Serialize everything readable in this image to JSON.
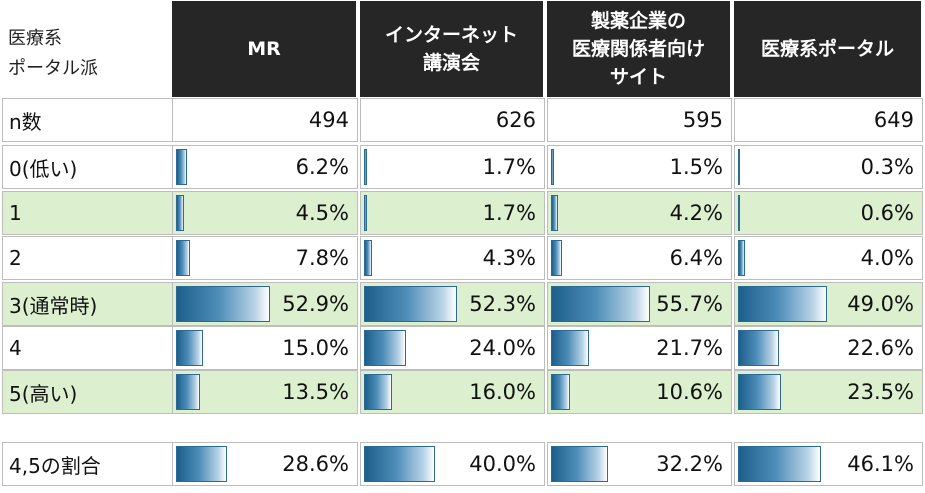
{
  "chart_data": {
    "type": "table",
    "corner_label": "医療系\nポータル派",
    "columns": [
      "MR",
      "インターネット\n講演会",
      "製薬企業の\n医療関係者向け\nサイト",
      "医療系ポータル"
    ],
    "n_row": {
      "label": "n数",
      "values": [
        494,
        626,
        595,
        649
      ]
    },
    "rows": [
      {
        "label": "0(低い)",
        "values": [
          6.2,
          1.7,
          1.5,
          0.3
        ],
        "highlight": false
      },
      {
        "label": "1",
        "values": [
          4.5,
          1.7,
          4.2,
          0.6
        ],
        "highlight": true
      },
      {
        "label": "2",
        "values": [
          7.8,
          4.3,
          6.4,
          4.0
        ],
        "highlight": false
      },
      {
        "label": "3(通常時)",
        "values": [
          52.9,
          52.3,
          55.7,
          49.0
        ],
        "highlight": true
      },
      {
        "label": "4",
        "values": [
          15.0,
          24.0,
          21.7,
          22.6
        ],
        "highlight": false
      },
      {
        "label": "5(高い)",
        "values": [
          13.5,
          16.0,
          10.6,
          23.5
        ],
        "highlight": true
      }
    ],
    "summary_row": {
      "label": "4,5の割合",
      "values": [
        28.6,
        40.0,
        32.2,
        46.1
      ]
    },
    "value_format": "percent",
    "bar_scale_max": 100,
    "colors": {
      "header_bg": "#262626",
      "header_text": "#ffffff",
      "highlight_row": "#dcefcf",
      "bar": "#1d5f8c",
      "border": "#bdbdbd"
    }
  }
}
